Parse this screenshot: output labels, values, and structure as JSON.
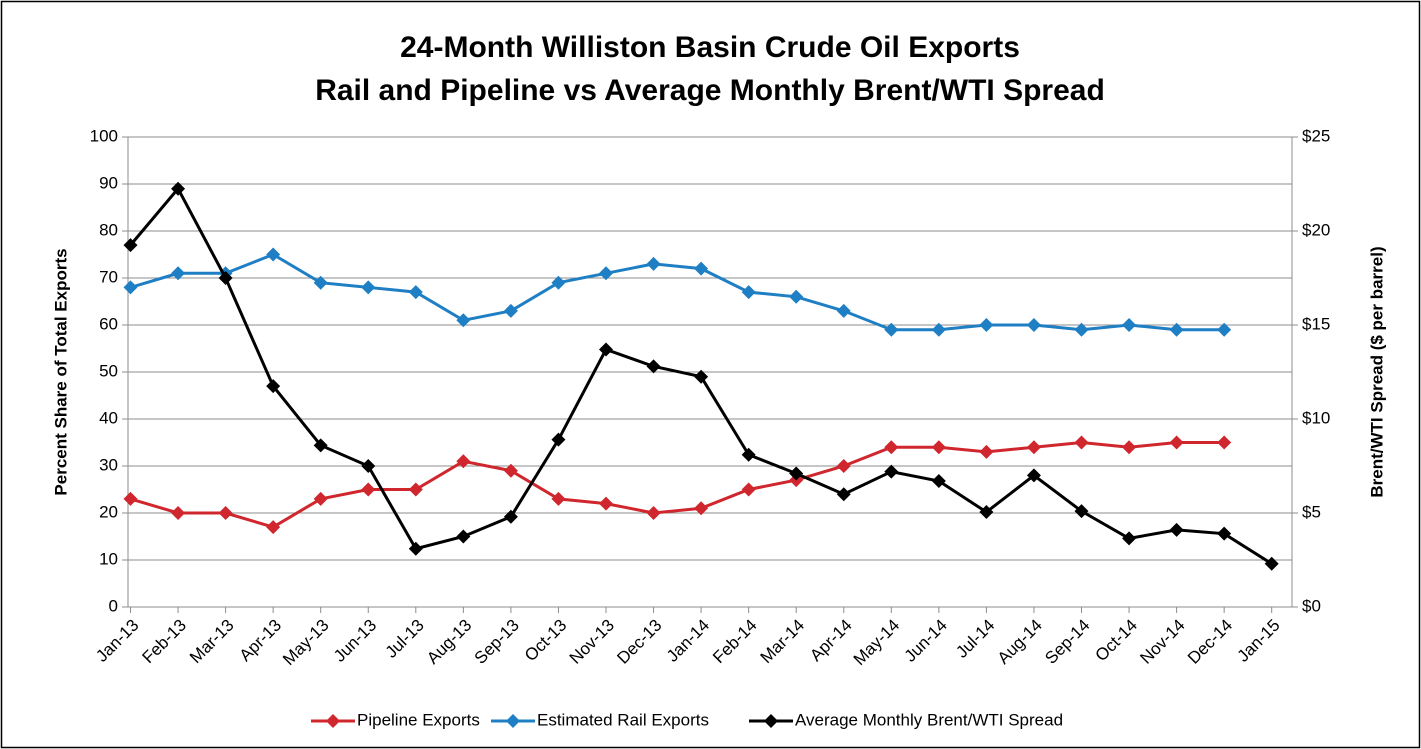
{
  "chart_data": {
    "type": "line",
    "title": [
      "24-Month Williston Basin Crude Oil Exports",
      "Rail and Pipeline vs Average Monthly Brent/WTI Spread"
    ],
    "y_label": "Percent Share of Total Exports",
    "y2_label": "Brent/WTI Spread ($ per barrel)",
    "categories": [
      "Jan-13",
      "Feb-13",
      "Mar-13",
      "Apr-13",
      "May-13",
      "Jun-13",
      "Jul-13",
      "Aug-13",
      "Sep-13",
      "Oct-13",
      "Nov-13",
      "Dec-13",
      "Jan-14",
      "Feb-14",
      "Mar-14",
      "Apr-14",
      "May-14",
      "Jun-14",
      "Jul-14",
      "Aug-14",
      "Sep-14",
      "Oct-14",
      "Nov-14",
      "Dec-14",
      "Jan-15"
    ],
    "series": [
      {
        "name": "Pipeline Exports",
        "color": "#d0262d",
        "values": [
          23,
          20,
          20,
          17,
          23,
          25,
          25,
          31,
          29,
          23,
          22,
          20,
          21,
          25,
          27,
          30,
          34,
          34,
          33,
          34,
          35,
          34,
          35,
          35,
          null
        ]
      },
      {
        "name": "Estimated Rail Exports",
        "color": "#1f7fc4",
        "values": [
          68,
          71,
          71,
          75,
          69,
          68,
          67,
          61,
          63,
          69,
          71,
          73,
          72,
          67,
          66,
          63,
          59,
          59,
          60,
          60,
          59,
          60,
          59,
          59,
          null
        ]
      },
      {
        "name": "Average Monthly Brent/WTI Spread",
        "color": "#000000",
        "axis": "y2",
        "values": [
          19.25,
          22.25,
          17.5,
          11.75,
          8.6,
          7.5,
          3.1,
          3.75,
          4.8,
          8.9,
          13.7,
          12.8,
          12.25,
          8.1,
          7.1,
          6.0,
          7.2,
          6.7,
          5.05,
          7.0,
          5.1,
          3.65,
          4.1,
          3.9,
          2.3
        ]
      }
    ],
    "ylim": [
      0,
      100
    ],
    "yticks": [
      0,
      10,
      20,
      30,
      40,
      50,
      60,
      70,
      80,
      90,
      100
    ],
    "y2lim": [
      0,
      25
    ],
    "y2ticks": [
      {
        "value": 0,
        "label": "$0"
      },
      {
        "value": 5,
        "label": "$5"
      },
      {
        "value": 10,
        "label": "$10"
      },
      {
        "value": 15,
        "label": "$15"
      },
      {
        "value": 20,
        "label": "$20"
      },
      {
        "value": 25,
        "label": "$25"
      }
    ],
    "grid": true,
    "legend": "bottom"
  }
}
